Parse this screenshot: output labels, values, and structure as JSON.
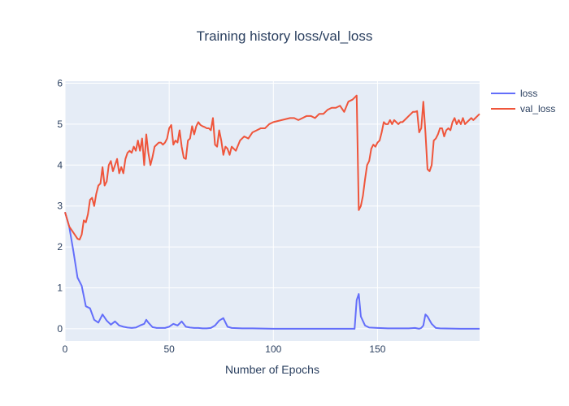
{
  "chart_data": {
    "type": "line",
    "title": "Training history loss/val_loss",
    "xlabel": "Number of Epochs",
    "ylabel": "",
    "xlim": [
      0,
      199
    ],
    "ylim": [
      -0.3,
      6.05
    ],
    "xticks": [
      0,
      50,
      100,
      150
    ],
    "yticks": [
      0,
      1,
      2,
      3,
      4,
      5,
      6
    ],
    "grid": true,
    "legend_position": "top-right",
    "series": [
      {
        "name": "loss",
        "color": "#636efa",
        "x": [
          0,
          2,
          4,
          6,
          8,
          10,
          12,
          14,
          16,
          18,
          20,
          22,
          24,
          26,
          28,
          30,
          32,
          34,
          36,
          38,
          39,
          40,
          42,
          44,
          46,
          48,
          50,
          52,
          54,
          56,
          58,
          60,
          62,
          64,
          66,
          68,
          70,
          72,
          74,
          76,
          78,
          80,
          85,
          90,
          100,
          110,
          120,
          130,
          135,
          138,
          139,
          140,
          141,
          142,
          144,
          146,
          150,
          155,
          160,
          165,
          168,
          170,
          171,
          172,
          173,
          174,
          176,
          178,
          180,
          190,
          199
        ],
        "y": [
          2.85,
          2.5,
          1.9,
          1.25,
          1.05,
          0.55,
          0.5,
          0.22,
          0.15,
          0.35,
          0.2,
          0.1,
          0.18,
          0.08,
          0.05,
          0.03,
          0.02,
          0.03,
          0.08,
          0.12,
          0.22,
          0.15,
          0.04,
          0.02,
          0.02,
          0.02,
          0.05,
          0.12,
          0.08,
          0.18,
          0.05,
          0.03,
          0.02,
          0.02,
          0.01,
          0.01,
          0.02,
          0.08,
          0.2,
          0.26,
          0.05,
          0.02,
          0.01,
          0.01,
          0.0,
          0.0,
          0.0,
          0.0,
          0.0,
          0.0,
          0.0,
          0.7,
          0.85,
          0.3,
          0.08,
          0.03,
          0.02,
          0.01,
          0.01,
          0.01,
          0.02,
          0.0,
          0.02,
          0.08,
          0.35,
          0.3,
          0.12,
          0.02,
          0.01,
          0.0,
          0.0
        ]
      },
      {
        "name": "val_loss",
        "color": "#ef553b",
        "x": [
          0,
          2,
          4,
          6,
          7,
          8,
          9,
          10,
          11,
          12,
          13,
          14,
          15,
          16,
          17,
          18,
          19,
          20,
          21,
          22,
          23,
          24,
          25,
          26,
          27,
          28,
          29,
          30,
          31,
          32,
          33,
          34,
          35,
          36,
          37,
          38,
          39,
          40,
          41,
          42,
          43,
          44,
          45,
          46,
          47,
          48,
          49,
          50,
          51,
          52,
          53,
          54,
          55,
          56,
          57,
          58,
          59,
          60,
          61,
          62,
          63,
          64,
          65,
          66,
          67,
          68,
          69,
          70,
          71,
          72,
          73,
          74,
          75,
          76,
          77,
          78,
          79,
          80,
          82,
          84,
          86,
          88,
          90,
          92,
          94,
          96,
          98,
          100,
          104,
          108,
          110,
          112,
          114,
          116,
          118,
          120,
          122,
          124,
          126,
          128,
          130,
          132,
          134,
          136,
          138,
          139,
          140,
          141,
          142,
          143,
          144,
          145,
          146,
          147,
          148,
          149,
          150,
          151,
          152,
          153,
          154,
          155,
          156,
          157,
          158,
          159,
          160,
          161,
          162,
          163,
          164,
          165,
          166,
          167,
          168,
          169,
          170,
          171,
          172,
          173,
          174,
          175,
          176,
          177,
          178,
          179,
          180,
          181,
          182,
          183,
          184,
          185,
          186,
          187,
          188,
          189,
          190,
          191,
          192,
          193,
          194,
          195,
          196,
          197,
          198,
          199
        ],
        "y": [
          2.85,
          2.5,
          2.35,
          2.2,
          2.18,
          2.3,
          2.65,
          2.6,
          2.8,
          3.15,
          3.2,
          3.0,
          3.3,
          3.5,
          3.55,
          3.95,
          3.5,
          3.6,
          4.0,
          4.1,
          3.85,
          4.0,
          4.15,
          3.8,
          3.95,
          3.8,
          4.15,
          4.3,
          4.35,
          4.3,
          4.45,
          4.35,
          4.6,
          4.35,
          4.65,
          4.0,
          4.75,
          4.3,
          4.0,
          4.2,
          4.45,
          4.5,
          4.55,
          4.55,
          4.5,
          4.55,
          4.65,
          4.9,
          4.98,
          4.5,
          4.6,
          4.55,
          4.85,
          4.45,
          4.18,
          4.15,
          4.6,
          4.65,
          4.95,
          4.75,
          4.95,
          5.05,
          4.98,
          4.95,
          4.93,
          4.9,
          4.9,
          4.85,
          5.15,
          4.5,
          4.45,
          4.85,
          4.6,
          4.25,
          4.45,
          4.4,
          4.25,
          4.45,
          4.35,
          4.6,
          4.7,
          4.65,
          4.8,
          4.85,
          4.9,
          4.9,
          5.0,
          5.05,
          5.1,
          5.15,
          5.15,
          5.1,
          5.15,
          5.2,
          5.2,
          5.15,
          5.25,
          5.25,
          5.35,
          5.4,
          5.4,
          5.45,
          5.3,
          5.55,
          5.6,
          5.65,
          5.7,
          2.9,
          3.0,
          3.25,
          3.65,
          4.0,
          4.1,
          4.4,
          4.5,
          4.45,
          4.55,
          4.6,
          4.8,
          5.05,
          5.0,
          5.0,
          5.1,
          5.0,
          5.1,
          5.05,
          5.0,
          5.05,
          5.05,
          5.1,
          5.15,
          5.2,
          5.25,
          5.3,
          5.3,
          5.32,
          4.8,
          4.9,
          5.55,
          4.8,
          3.9,
          3.85,
          4.0,
          4.6,
          4.65,
          4.75,
          4.9,
          4.9,
          4.7,
          4.85,
          4.9,
          4.85,
          5.05,
          5.15,
          5.0,
          5.1,
          5.0,
          5.15,
          5.0,
          5.05,
          5.1,
          5.15,
          5.1,
          5.15,
          5.2,
          5.25
        ]
      }
    ]
  }
}
